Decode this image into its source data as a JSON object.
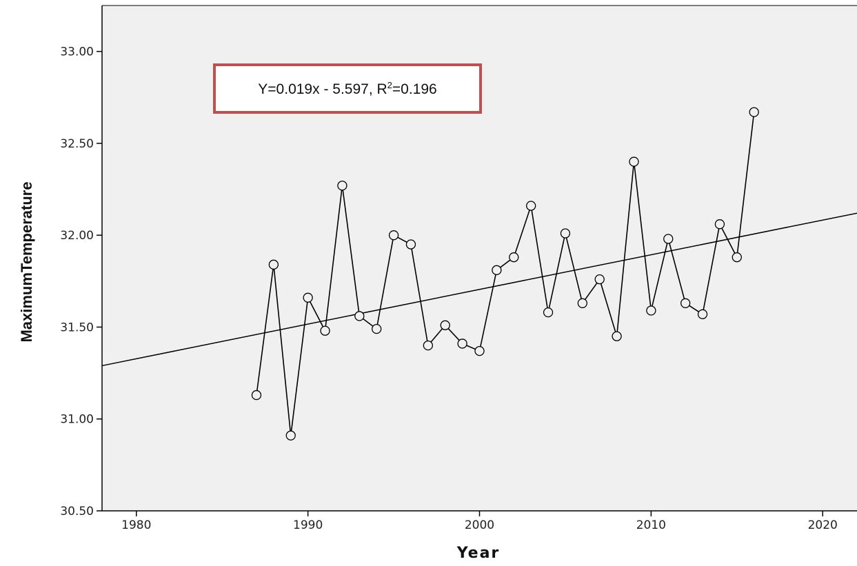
{
  "chart_data": {
    "type": "scatter",
    "xlabel": "Year",
    "ylabel": "MaximumTemperature",
    "xlim": [
      1978,
      2022
    ],
    "ylim": [
      30.5,
      33.25
    ],
    "x_ticks": [
      1980,
      1990,
      2000,
      2010,
      2020
    ],
    "x_tick_labels": [
      "1980",
      "1990",
      "2000",
      "2010",
      "2020"
    ],
    "y_ticks": [
      30.5,
      31.0,
      31.5,
      32.0,
      32.5,
      33.0
    ],
    "y_tick_labels": [
      "30.50",
      "31.00",
      "31.50",
      "32.00",
      "32.50",
      "33.00"
    ],
    "background": "#f0f0f0",
    "series": [
      {
        "x": [
          1987,
          1988,
          1989,
          1990,
          1991,
          1992,
          1993,
          1994,
          1995,
          1996,
          1997,
          1998,
          1999,
          2000,
          2001,
          2002,
          2003,
          2004,
          2005,
          2006,
          2007,
          2008,
          2009,
          2010,
          2011,
          2012,
          2013,
          2014,
          2015,
          2016
        ],
        "values": [
          31.13,
          31.84,
          30.91,
          31.66,
          31.48,
          32.27,
          31.56,
          31.49,
          32.0,
          31.95,
          31.4,
          31.51,
          31.41,
          31.37,
          31.81,
          31.88,
          32.16,
          31.58,
          32.01,
          31.63,
          31.76,
          31.45,
          32.4,
          31.59,
          31.98,
          31.63,
          31.57,
          32.06,
          31.88,
          32.67
        ]
      }
    ],
    "trend_line": {
      "x": [
        1978,
        2022
      ],
      "values": [
        31.29,
        32.12
      ]
    },
    "annotation": {
      "text_main": "Y=0.019x - 5.597, R",
      "superscript": "2",
      "text_tail": "=0.196"
    }
  }
}
